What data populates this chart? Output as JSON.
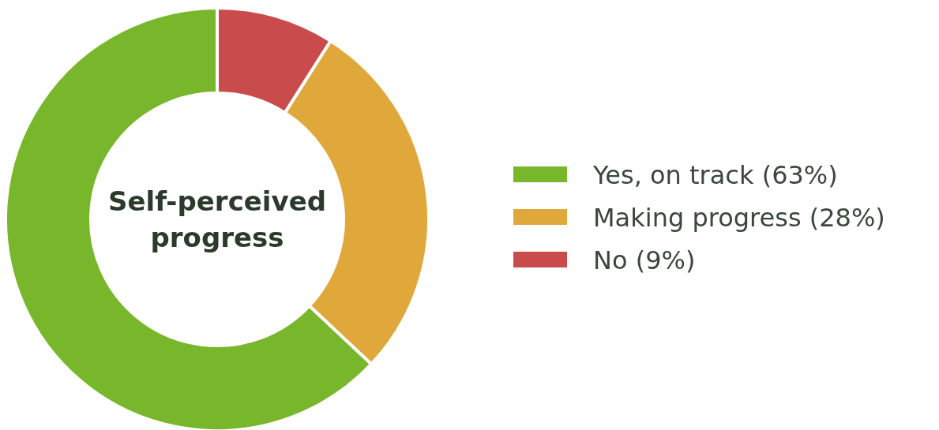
{
  "chart_data": {
    "type": "donut",
    "title": "Self-perceived progress",
    "categories": [
      "Yes, on track (63%)",
      "Making progress (28%)",
      "No (9%)"
    ],
    "values": [
      63,
      28,
      9
    ],
    "colors": [
      "#78b72b",
      "#e0a83b",
      "#c94b4b"
    ],
    "legend": "right"
  }
}
